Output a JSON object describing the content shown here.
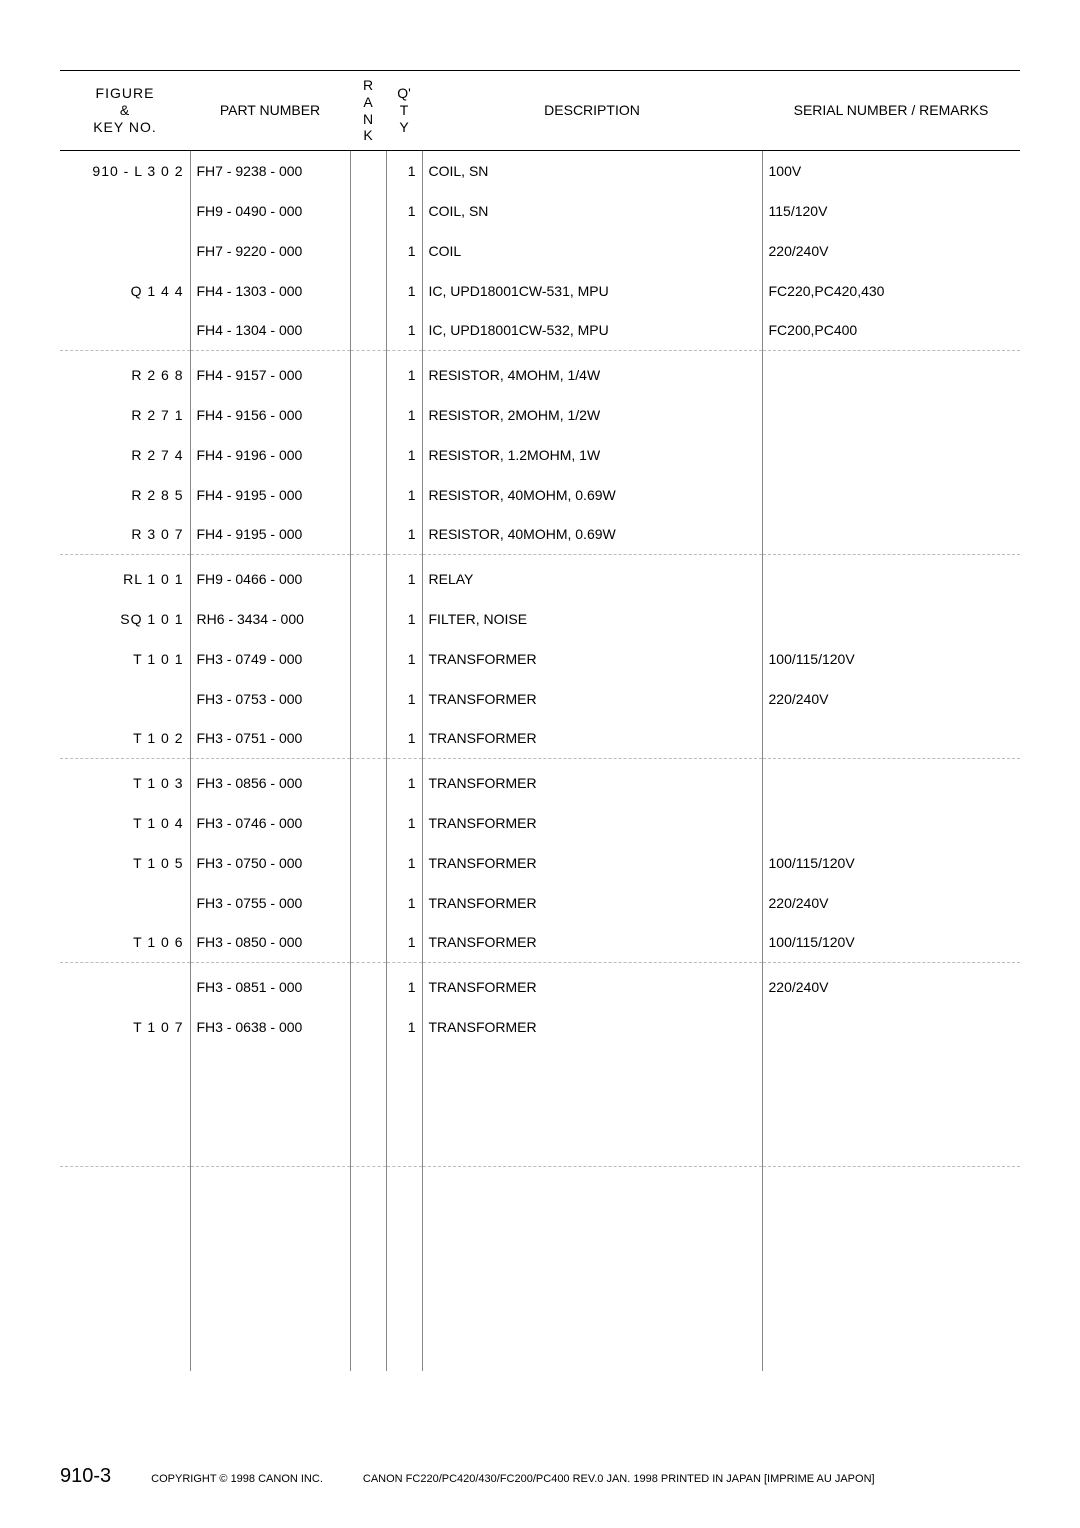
{
  "header": {
    "figure": "FIGURE\n&\nKEY NO.",
    "part": "PART NUMBER",
    "rank": "R\nA\nN\nK",
    "qty": "Q'\nT\nY",
    "desc": "DESCRIPTION",
    "remarks": "SERIAL NUMBER / REMARKS"
  },
  "groups": [
    {
      "rows": [
        {
          "fig": "910 -   L 3 0 2",
          "part": "FH7 - 9238 - 000",
          "qty": "1",
          "desc": "COIL, SN",
          "rem": "100V"
        },
        {
          "fig": "",
          "part": "FH9 - 0490 - 000",
          "qty": "1",
          "desc": "COIL, SN",
          "rem": "115/120V"
        },
        {
          "fig": "",
          "part": "FH7 - 9220 - 000",
          "qty": "1",
          "desc": "COIL",
          "rem": "220/240V"
        },
        {
          "fig": "Q 1 4 4",
          "part": "FH4 - 1303 - 000",
          "qty": "1",
          "desc": "IC, UPD18001CW-531, MPU",
          "rem": "FC220,PC420,430"
        },
        {
          "fig": "",
          "part": "FH4 - 1304 - 000",
          "qty": "1",
          "desc": "IC, UPD18001CW-532, MPU",
          "rem": "FC200,PC400"
        }
      ]
    },
    {
      "rows": [
        {
          "fig": "R 2 6 8",
          "part": "FH4 - 9157 - 000",
          "qty": "1",
          "desc": "RESISTOR, 4MOHM, 1/4W",
          "rem": ""
        },
        {
          "fig": "R 2 7 1",
          "part": "FH4 - 9156 - 000",
          "qty": "1",
          "desc": "RESISTOR, 2MOHM, 1/2W",
          "rem": ""
        },
        {
          "fig": "R 2 7 4",
          "part": "FH4 - 9196 - 000",
          "qty": "1",
          "desc": "RESISTOR, 1.2MOHM, 1W",
          "rem": ""
        },
        {
          "fig": "R 2 8 5",
          "part": "FH4 - 9195 - 000",
          "qty": "1",
          "desc": "RESISTOR, 40MOHM, 0.69W",
          "rem": ""
        },
        {
          "fig": "R 3 0 7",
          "part": "FH4 - 9195 - 000",
          "qty": "1",
          "desc": "RESISTOR, 40MOHM, 0.69W",
          "rem": ""
        }
      ]
    },
    {
      "rows": [
        {
          "fig": "RL 1 0 1",
          "part": "FH9 - 0466 - 000",
          "qty": "1",
          "desc": "RELAY",
          "rem": ""
        },
        {
          "fig": "SQ 1 0 1",
          "part": "RH6 - 3434 - 000",
          "qty": "1",
          "desc": "FILTER, NOISE",
          "rem": ""
        },
        {
          "fig": "T 1 0 1",
          "part": "FH3 - 0749 - 000",
          "qty": "1",
          "desc": "TRANSFORMER",
          "rem": "100/115/120V"
        },
        {
          "fig": "",
          "part": "FH3 - 0753 - 000",
          "qty": "1",
          "desc": "TRANSFORMER",
          "rem": "220/240V"
        },
        {
          "fig": "T 1 0 2",
          "part": "FH3 - 0751 - 000",
          "qty": "1",
          "desc": "TRANSFORMER",
          "rem": ""
        }
      ]
    },
    {
      "rows": [
        {
          "fig": "T 1 0 3",
          "part": "FH3 - 0856 - 000",
          "qty": "1",
          "desc": "TRANSFORMER",
          "rem": ""
        },
        {
          "fig": "T 1 0 4",
          "part": "FH3 - 0746 - 000",
          "qty": "1",
          "desc": "TRANSFORMER",
          "rem": ""
        },
        {
          "fig": "T 1 0 5",
          "part": "FH3 - 0750 - 000",
          "qty": "1",
          "desc": "TRANSFORMER",
          "rem": "100/115/120V"
        },
        {
          "fig": "",
          "part": "FH3 - 0755 - 000",
          "qty": "1",
          "desc": "TRANSFORMER",
          "rem": "220/240V"
        },
        {
          "fig": "T 1 0 6",
          "part": "FH3 - 0850 - 000",
          "qty": "1",
          "desc": "TRANSFORMER",
          "rem": "100/115/120V"
        }
      ]
    },
    {
      "rows": [
        {
          "fig": "",
          "part": "FH3 - 0851 - 000",
          "qty": "1",
          "desc": "TRANSFORMER",
          "rem": "220/240V"
        },
        {
          "fig": "T 1 0 7",
          "part": "FH3 - 0638 - 000",
          "qty": "1",
          "desc": "TRANSFORMER",
          "rem": ""
        },
        {
          "fig": "",
          "part": "",
          "qty": "",
          "desc": "",
          "rem": ""
        },
        {
          "fig": "",
          "part": "",
          "qty": "",
          "desc": "",
          "rem": ""
        },
        {
          "fig": "",
          "part": "",
          "qty": "",
          "desc": "",
          "rem": ""
        }
      ]
    },
    {
      "rows": [
        {
          "fig": "",
          "part": "",
          "qty": "",
          "desc": "",
          "rem": ""
        },
        {
          "fig": "",
          "part": "",
          "qty": "",
          "desc": "",
          "rem": ""
        },
        {
          "fig": "",
          "part": "",
          "qty": "",
          "desc": "",
          "rem": ""
        },
        {
          "fig": "",
          "part": "",
          "qty": "",
          "desc": "",
          "rem": ""
        },
        {
          "fig": "",
          "part": "",
          "qty": "",
          "desc": "",
          "rem": ""
        }
      ]
    }
  ],
  "footer": {
    "pageno": "910-3",
    "copyright": "COPYRIGHT © 1998 CANON INC.",
    "docline": "CANON FC220/PC420/430/FC200/PC400 REV.0 JAN. 1998 PRINTED IN JAPAN [IMPRIME AU JAPON]"
  }
}
